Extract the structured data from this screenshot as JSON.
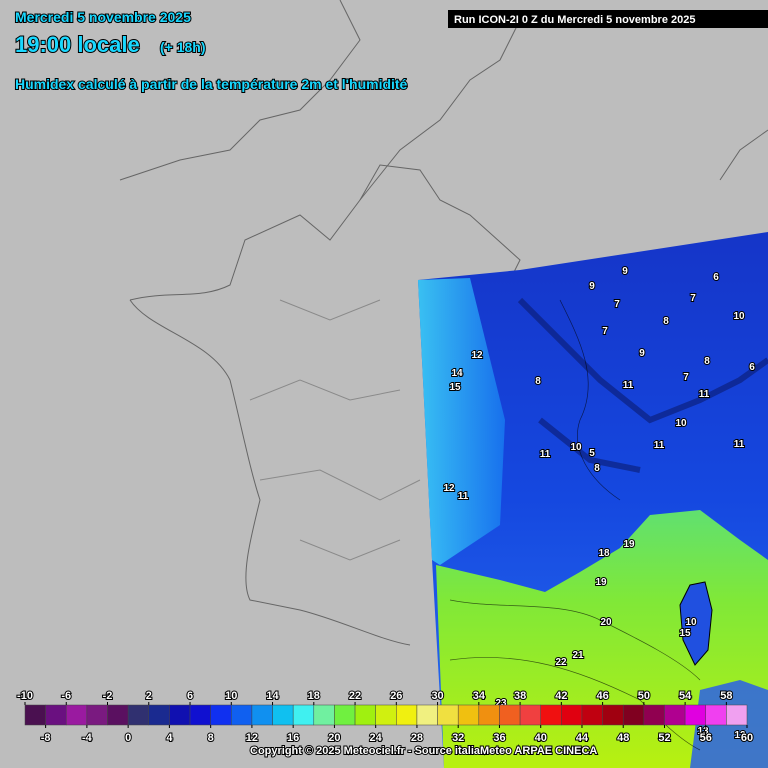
{
  "header": {
    "date": "Mercredi 5 novembre 2025",
    "time": "19:00 locale",
    "lead": "(+ 18h)",
    "subtitle": "Humidex calculé à partir de la température 2m et l'humidité",
    "run": "Run ICON-2I 0 Z du Mercredi 5 novembre 2025"
  },
  "map": {
    "labels": [
      "9",
      "9",
      "6",
      "7",
      "7",
      "10",
      "8",
      "7",
      "12",
      "9",
      "8",
      "6",
      "14",
      "15",
      "8",
      "7",
      "11",
      "11",
      "10",
      "11",
      "11",
      "10",
      "5",
      "11",
      "8",
      "12",
      "11",
      "18",
      "19",
      "19",
      "20",
      "15",
      "10",
      "21",
      "22",
      "23",
      "13",
      "12"
    ]
  },
  "colorbar": {
    "ticks": [
      -10,
      -8,
      -6,
      -4,
      -2,
      0,
      2,
      4,
      6,
      8,
      10,
      12,
      14,
      16,
      18,
      20,
      22,
      24,
      26,
      28,
      30,
      32,
      34,
      36,
      38,
      40,
      42,
      44,
      46,
      48,
      50,
      52,
      54,
      56,
      58,
      60
    ],
    "colors": [
      "#4a1050",
      "#6a1080",
      "#9a1aa0",
      "#7a1a80",
      "#5a1060",
      "#303070",
      "#1a2a90",
      "#1010b0",
      "#1010d0",
      "#1030f0",
      "#1060f0",
      "#1090f0",
      "#10c0f0",
      "#40f0f0",
      "#70f0a0",
      "#70f040",
      "#a0f010",
      "#d0f010",
      "#f0f010",
      "#f0f080",
      "#f0e040",
      "#f0c010",
      "#f09010",
      "#f06020",
      "#f04040",
      "#f01010",
      "#e00010",
      "#c00010",
      "#a00010",
      "#800020",
      "#900050",
      "#b00090",
      "#e000e0",
      "#f040f0",
      "#f0a0f0"
    ]
  },
  "footer": {
    "copyright": "Copyright © 2025 Meteociel.fr - Source italiaMeteo ARPAE CINECA"
  }
}
